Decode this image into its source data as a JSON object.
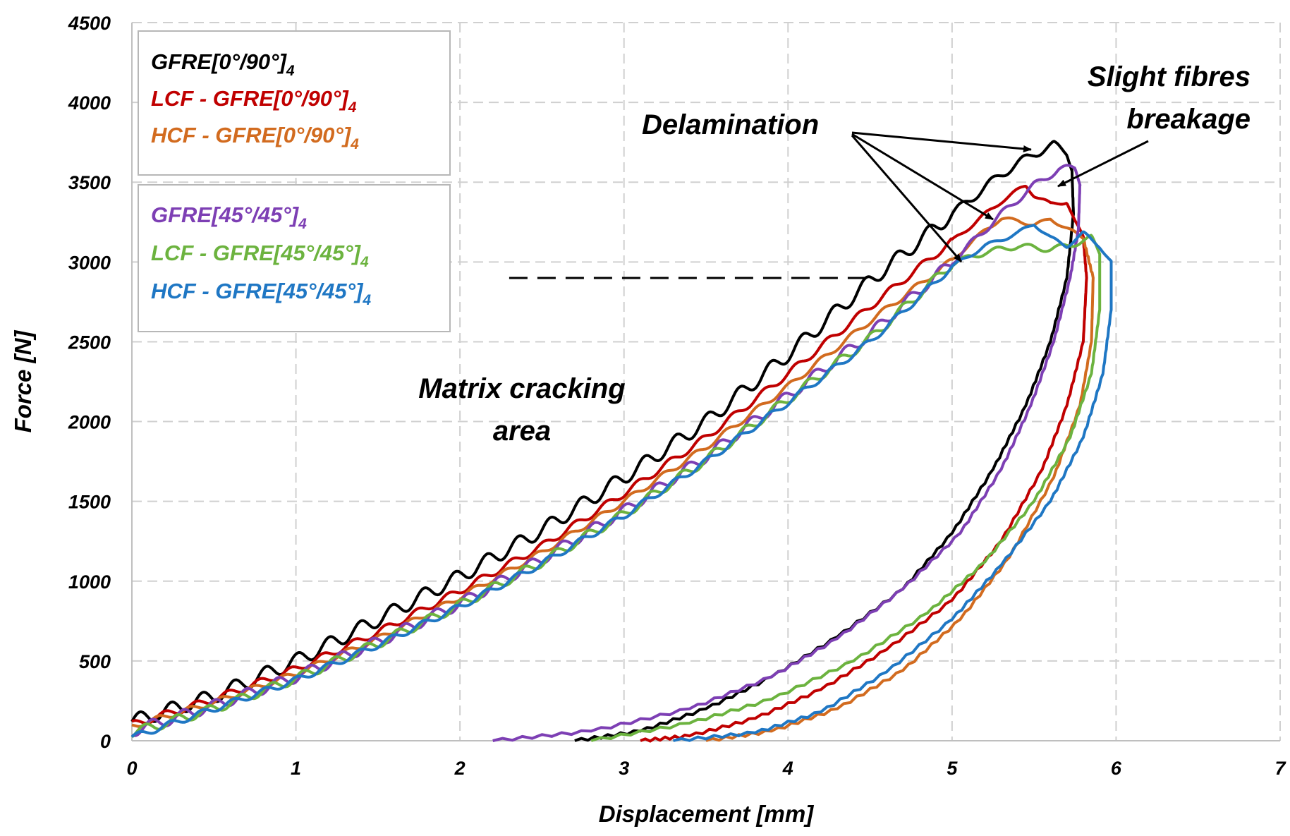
{
  "chart_data": {
    "type": "line",
    "title": "",
    "xlabel": "Displacement  [mm]",
    "ylabel": "Force [N]",
    "xlim": [
      0,
      7
    ],
    "ylim": [
      0,
      4500
    ],
    "x_ticks": [
      "0",
      "1",
      "2",
      "3",
      "4",
      "5",
      "6",
      "7"
    ],
    "y_ticks": [
      "0",
      "500",
      "1000",
      "1500",
      "2000",
      "2500",
      "3000",
      "3500",
      "4000",
      "4500"
    ],
    "grid": true,
    "legend_groups": [
      {
        "placement": "top-left",
        "entries": [
          {
            "main": "GFRE[0°/90°]",
            "sub": "4",
            "color": "#000000"
          },
          {
            "main": "LCF - GFRE[0°/90°]",
            "sub": "4",
            "color": "#c00000"
          },
          {
            "main": "HCF - GFRE[0°/90°]",
            "sub": "4",
            "color": "#d26b1f"
          }
        ]
      },
      {
        "placement": "upper-left",
        "entries": [
          {
            "main": "GFRE[45°/45°]",
            "sub": "4",
            "color": "#7d3fb4"
          },
          {
            "main": "LCF - GFRE[45°/45°]",
            "sub": "4",
            "color": "#6cb33f"
          },
          {
            "main": "HCF - GFRE[45°/45°]",
            "sub": "4",
            "color": "#1f77c4"
          }
        ]
      }
    ],
    "annotations": {
      "delamination": "Delamination",
      "fibre_line1": "Slight fibres",
      "fibre_line2": "breakage",
      "matrix_line1": "Matrix cracking",
      "matrix_line2": "area"
    },
    "reference_line": {
      "y": 2900,
      "x_start": 2.3,
      "x_end": 4.5,
      "style": "dashed"
    },
    "series": [
      {
        "name": "GFRE[0°/90°]4",
        "color": "#000000",
        "wiggle": 45,
        "loading": [
          [
            0,
            120
          ],
          [
            0.5,
            280
          ],
          [
            1,
            500
          ],
          [
            1.5,
            760
          ],
          [
            2,
            1030
          ],
          [
            2.5,
            1320
          ],
          [
            3,
            1650
          ],
          [
            3.5,
            2000
          ],
          [
            4,
            2420
          ],
          [
            4.5,
            2880
          ],
          [
            5,
            3300
          ],
          [
            5.3,
            3550
          ],
          [
            5.5,
            3680
          ],
          [
            5.62,
            3730
          ],
          [
            5.7,
            3690
          ],
          [
            5.73,
            3600
          ]
        ],
        "unloading": [
          [
            5.73,
            3600
          ],
          [
            5.74,
            3300
          ],
          [
            5.7,
            2900
          ],
          [
            5.6,
            2500
          ],
          [
            5.45,
            2100
          ],
          [
            5.25,
            1700
          ],
          [
            5,
            1300
          ],
          [
            4.7,
            950
          ],
          [
            4.3,
            650
          ],
          [
            3.9,
            400
          ],
          [
            3.5,
            200
          ],
          [
            3.1,
            60
          ],
          [
            2.7,
            0
          ]
        ]
      },
      {
        "name": "LCF - GFRE[0°/90°]4",
        "color": "#c00000",
        "wiggle": 22,
        "loading": [
          [
            0,
            100
          ],
          [
            0.5,
            260
          ],
          [
            1,
            450
          ],
          [
            1.5,
            680
          ],
          [
            2,
            940
          ],
          [
            2.5,
            1220
          ],
          [
            3,
            1550
          ],
          [
            3.5,
            1900
          ],
          [
            4,
            2300
          ],
          [
            4.5,
            2720
          ],
          [
            5,
            3130
          ],
          [
            5.3,
            3380
          ],
          [
            5.45,
            3480
          ],
          [
            5.5,
            3420
          ],
          [
            5.6,
            3360
          ],
          [
            5.7,
            3380
          ],
          [
            5.75,
            3250
          ],
          [
            5.8,
            3150
          ]
        ],
        "unloading": [
          [
            5.8,
            3150
          ],
          [
            5.82,
            2900
          ],
          [
            5.8,
            2500
          ],
          [
            5.7,
            2100
          ],
          [
            5.55,
            1700
          ],
          [
            5.3,
            1250
          ],
          [
            5,
            880
          ],
          [
            4.6,
            570
          ],
          [
            4.2,
            320
          ],
          [
            3.8,
            140
          ],
          [
            3.4,
            30
          ],
          [
            3.1,
            0
          ]
        ]
      },
      {
        "name": "HCF - GFRE[0°/90°]4",
        "color": "#d26b1f",
        "wiggle": 18,
        "loading": [
          [
            0,
            90
          ],
          [
            0.5,
            240
          ],
          [
            1,
            420
          ],
          [
            1.5,
            640
          ],
          [
            2,
            900
          ],
          [
            2.5,
            1180
          ],
          [
            3,
            1500
          ],
          [
            3.5,
            1840
          ],
          [
            4,
            2220
          ],
          [
            4.5,
            2630
          ],
          [
            5,
            3010
          ],
          [
            5.2,
            3200
          ],
          [
            5.3,
            3270
          ],
          [
            5.4,
            3260
          ],
          [
            5.5,
            3230
          ],
          [
            5.6,
            3270
          ],
          [
            5.7,
            3210
          ],
          [
            5.8,
            3150
          ]
        ],
        "unloading": [
          [
            5.8,
            3150
          ],
          [
            5.86,
            2900
          ],
          [
            5.85,
            2500
          ],
          [
            5.78,
            2100
          ],
          [
            5.62,
            1650
          ],
          [
            5.35,
            1150
          ],
          [
            5.05,
            760
          ],
          [
            4.7,
            440
          ],
          [
            4.3,
            200
          ],
          [
            3.9,
            60
          ],
          [
            3.5,
            0
          ]
        ]
      },
      {
        "name": "GFRE[45°/45°]4",
        "color": "#7d3fb4",
        "wiggle": 35,
        "loading": [
          [
            0,
            60
          ],
          [
            0.5,
            220
          ],
          [
            1,
            400
          ],
          [
            1.5,
            620
          ],
          [
            2,
            860
          ],
          [
            2.5,
            1140
          ],
          [
            3,
            1440
          ],
          [
            3.5,
            1780
          ],
          [
            4,
            2160
          ],
          [
            4.5,
            2550
          ],
          [
            5,
            3000
          ],
          [
            5.3,
            3300
          ],
          [
            5.5,
            3480
          ],
          [
            5.65,
            3580
          ],
          [
            5.75,
            3590
          ],
          [
            5.78,
            3500
          ]
        ],
        "unloading": [
          [
            5.78,
            3500
          ],
          [
            5.77,
            3200
          ],
          [
            5.72,
            2900
          ],
          [
            5.62,
            2500
          ],
          [
            5.48,
            2100
          ],
          [
            5.3,
            1700
          ],
          [
            5.05,
            1300
          ],
          [
            4.7,
            950
          ],
          [
            4.3,
            640
          ],
          [
            3.9,
            400
          ],
          [
            3.4,
            200
          ],
          [
            2.8,
            60
          ],
          [
            2.2,
            0
          ]
        ]
      },
      {
        "name": "LCF - GFRE[45°/45°]4",
        "color": "#6cb33f",
        "wiggle": 30,
        "loading": [
          [
            0,
            50
          ],
          [
            0.5,
            200
          ],
          [
            1,
            390
          ],
          [
            1.5,
            610
          ],
          [
            2,
            850
          ],
          [
            2.5,
            1120
          ],
          [
            3,
            1420
          ],
          [
            3.5,
            1760
          ],
          [
            4,
            2140
          ],
          [
            4.5,
            2520
          ],
          [
            4.8,
            2800
          ],
          [
            5,
            2990
          ],
          [
            5.2,
            3060
          ],
          [
            5.4,
            3100
          ],
          [
            5.6,
            3080
          ],
          [
            5.7,
            3100
          ],
          [
            5.85,
            3150
          ],
          [
            5.9,
            3050
          ]
        ],
        "unloading": [
          [
            5.9,
            3050
          ],
          [
            5.9,
            2700
          ],
          [
            5.85,
            2300
          ],
          [
            5.72,
            1900
          ],
          [
            5.5,
            1500
          ],
          [
            5.2,
            1120
          ],
          [
            4.85,
            800
          ],
          [
            4.4,
            500
          ],
          [
            3.9,
            260
          ],
          [
            3.4,
            110
          ],
          [
            2.8,
            0
          ]
        ]
      },
      {
        "name": "HCF - GFRE[45°/45°]4",
        "color": "#1f77c4",
        "wiggle": 20,
        "loading": [
          [
            0,
            20
          ],
          [
            0.5,
            200
          ],
          [
            1,
            380
          ],
          [
            1.5,
            600
          ],
          [
            2,
            840
          ],
          [
            2.5,
            1110
          ],
          [
            3,
            1410
          ],
          [
            3.5,
            1750
          ],
          [
            4,
            2120
          ],
          [
            4.5,
            2500
          ],
          [
            4.8,
            2780
          ],
          [
            5,
            2970
          ],
          [
            5.2,
            3100
          ],
          [
            5.4,
            3180
          ],
          [
            5.5,
            3240
          ],
          [
            5.6,
            3150
          ],
          [
            5.7,
            3100
          ],
          [
            5.8,
            3180
          ],
          [
            5.9,
            3100
          ],
          [
            5.97,
            3000
          ]
        ],
        "unloading": [
          [
            5.97,
            3000
          ],
          [
            5.97,
            2700
          ],
          [
            5.92,
            2300
          ],
          [
            5.8,
            1900
          ],
          [
            5.6,
            1500
          ],
          [
            5.3,
            1100
          ],
          [
            5,
            760
          ],
          [
            4.6,
            430
          ],
          [
            4.2,
            180
          ],
          [
            3.8,
            50
          ],
          [
            3.3,
            0
          ]
        ]
      }
    ]
  }
}
